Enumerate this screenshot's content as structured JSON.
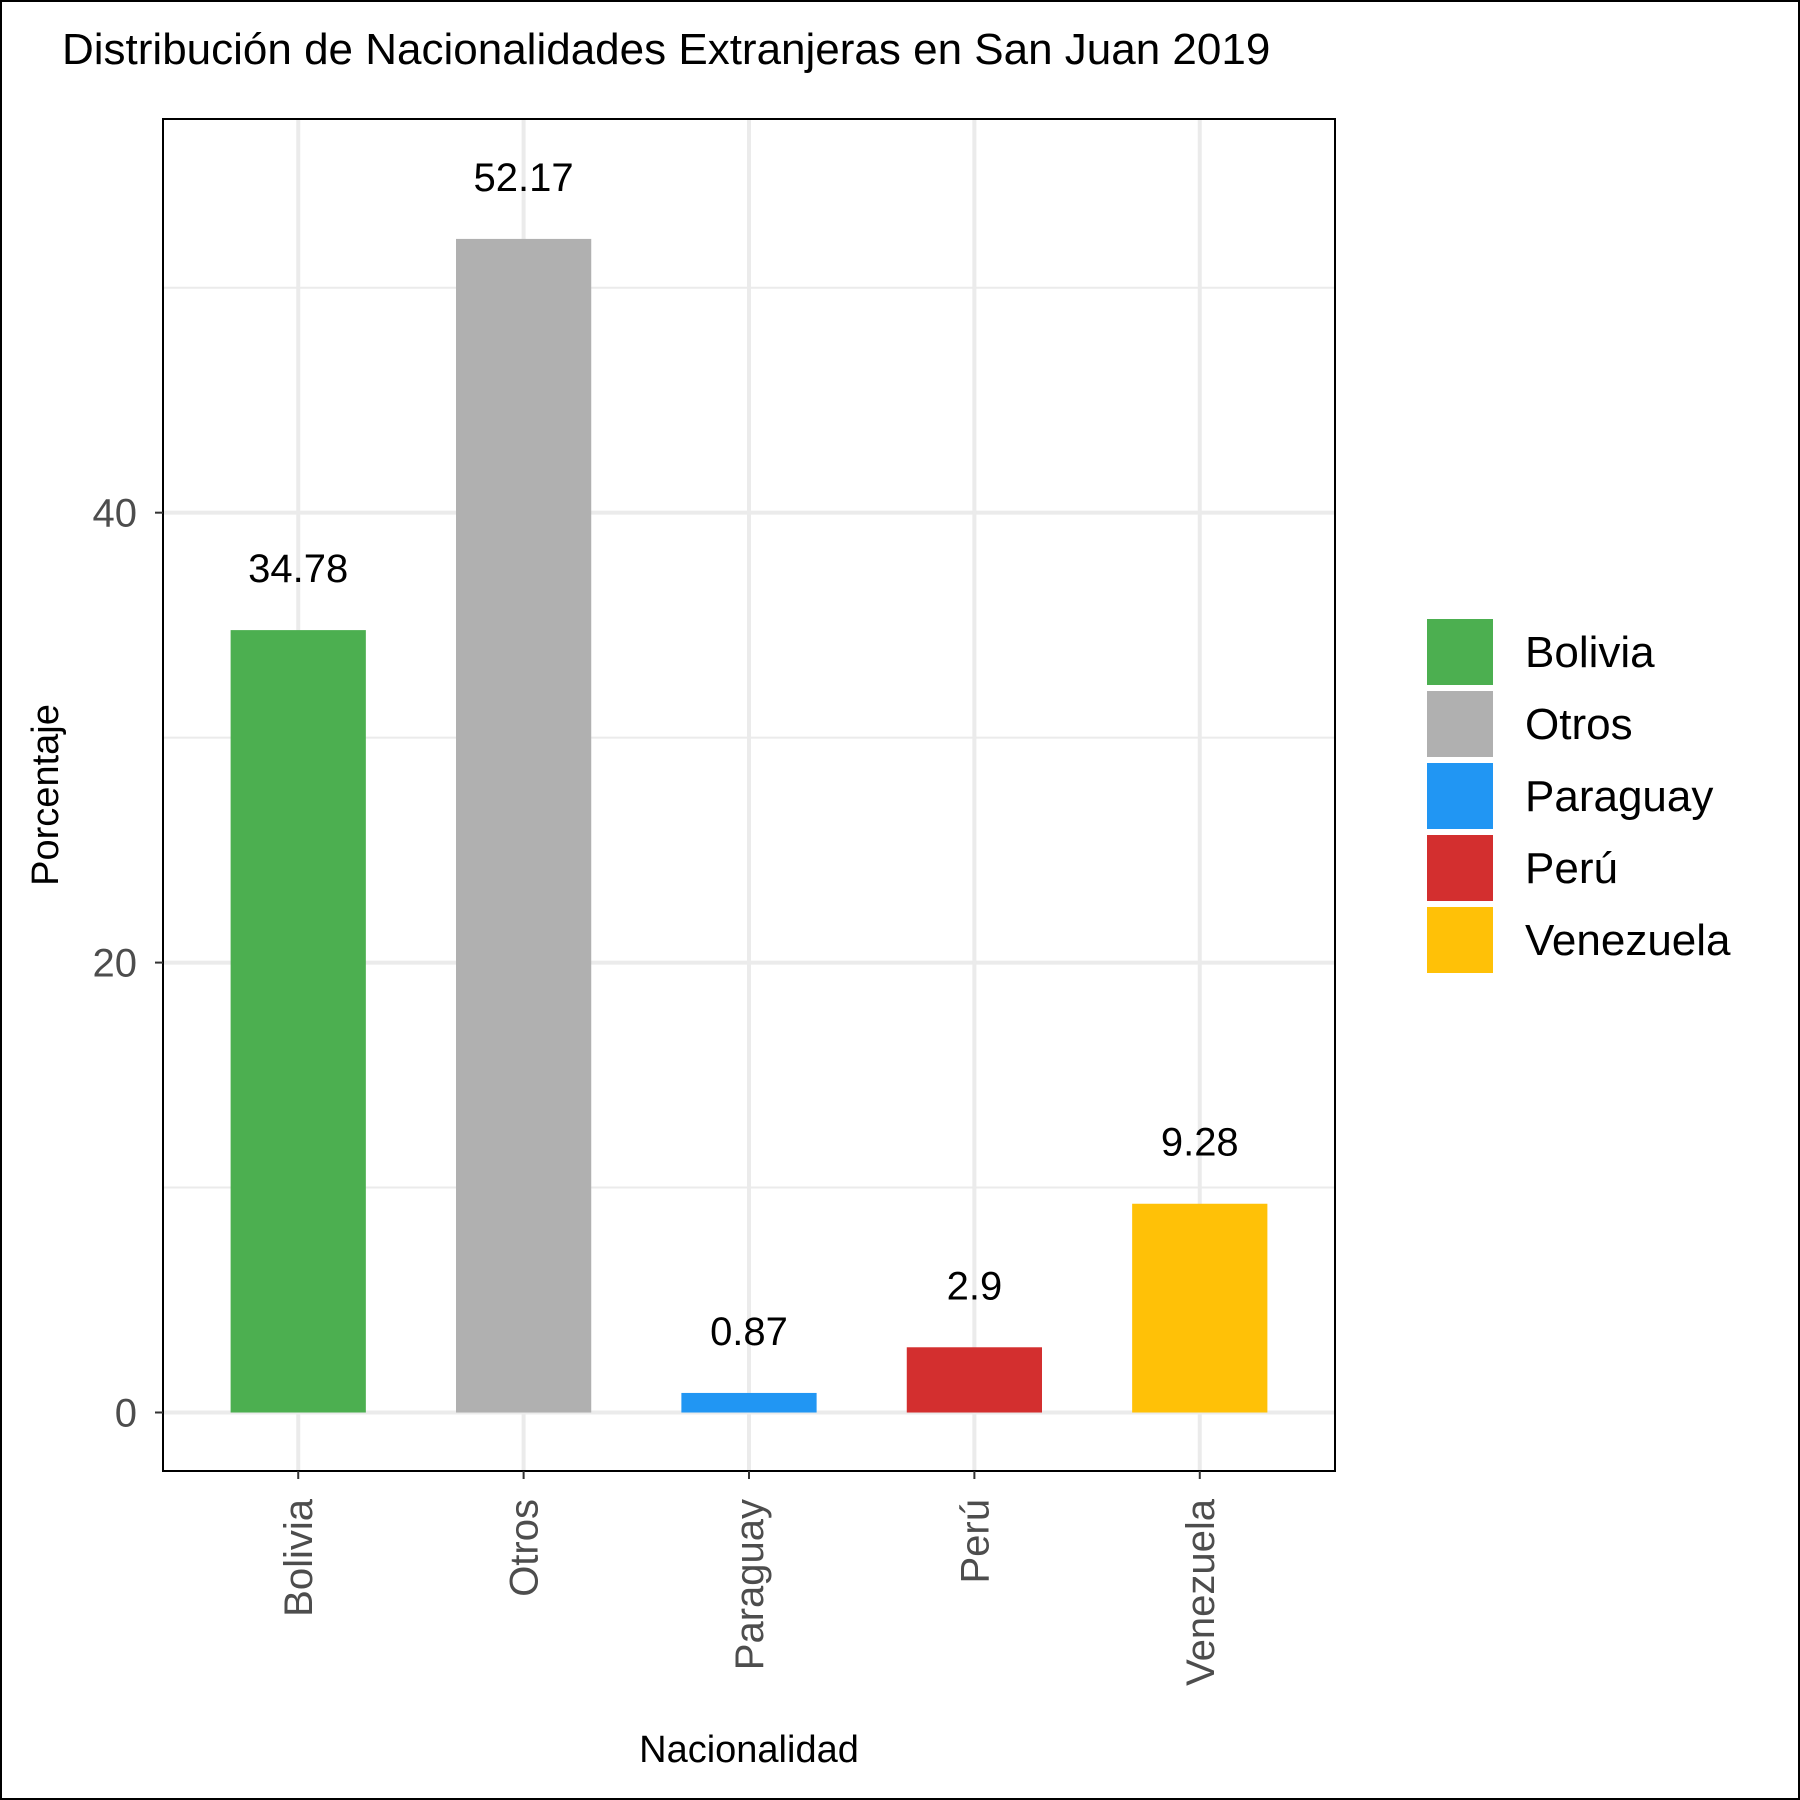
{
  "chart_data": {
    "type": "bar",
    "title": "Distribución de Nacionalidades Extranjeras en San Juan 2019",
    "xlabel": "Nacionalidad",
    "ylabel": "Porcentaje",
    "categories": [
      "Bolivia",
      "Otros",
      "Paraguay",
      "Perú",
      "Venezuela"
    ],
    "values": [
      34.78,
      52.17,
      0.87,
      2.9,
      9.28
    ],
    "value_labels": [
      "34.78",
      "52.17",
      "0.87",
      "2.9",
      "9.28"
    ],
    "colors": [
      "#4caf50",
      "#b0b0b0",
      "#2196f3",
      "#d32f2f",
      "#ffc107"
    ],
    "ylim": [
      -2.6,
      57.5
    ],
    "yticks": [
      0,
      20,
      40
    ],
    "yticks_minor": [
      10,
      30,
      50
    ],
    "grid": true,
    "legend": {
      "position": "right",
      "entries": [
        "Bolivia",
        "Otros",
        "Paraguay",
        "Perú",
        "Venezuela"
      ]
    }
  }
}
